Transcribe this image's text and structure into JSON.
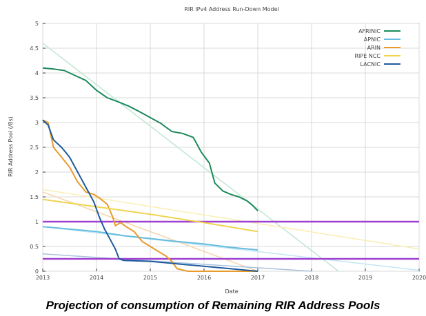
{
  "caption": "Projection of consumption of Remaining RIR Address Pools",
  "chart_data": {
    "type": "line",
    "title": "RIR IPv4 Address Run-Down Model",
    "xlabel": "Date",
    "ylabel": "RIR Address Pool (/8s)",
    "xlim": [
      2013,
      2020
    ],
    "ylim": [
      0,
      5
    ],
    "xticks": [
      "2013",
      "2014",
      "2015",
      "2016",
      "2017",
      "2018",
      "2019",
      "2020"
    ],
    "yticks": [
      "0",
      "0.5",
      "1",
      "1.5",
      "2",
      "2.5",
      "3",
      "3.5",
      "4",
      "4.5",
      "5"
    ],
    "grid": true,
    "legend_position": "top-right",
    "series": [
      {
        "name": "AFRINIC",
        "color": "#1a8a5a",
        "x": [
          2013.0,
          2013.2,
          2013.4,
          2013.6,
          2013.8,
          2014.0,
          2014.2,
          2014.4,
          2014.6,
          2014.8,
          2015.0,
          2015.2,
          2015.4,
          2015.6,
          2015.8,
          2015.95,
          2016.1,
          2016.2,
          2016.35,
          2016.5,
          2016.65,
          2016.8,
          2016.9,
          2017.0
        ],
        "y": [
          4.1,
          4.08,
          4.05,
          3.95,
          3.85,
          3.65,
          3.5,
          3.42,
          3.33,
          3.22,
          3.1,
          2.98,
          2.82,
          2.78,
          2.7,
          2.4,
          2.18,
          1.78,
          1.62,
          1.55,
          1.5,
          1.42,
          1.33,
          1.22
        ]
      },
      {
        "name": "APNIC",
        "color": "#66bde0",
        "x": [
          2013.0,
          2013.5,
          2014.0,
          2014.5,
          2015.0,
          2015.5,
          2016.0,
          2016.5,
          2017.0
        ],
        "y": [
          0.9,
          0.85,
          0.8,
          0.72,
          0.66,
          0.6,
          0.55,
          0.48,
          0.43
        ]
      },
      {
        "name": "ARIN",
        "color": "#e89a2a",
        "x": [
          2013.0,
          2013.1,
          2013.2,
          2013.35,
          2013.5,
          2013.65,
          2013.8,
          2013.95,
          2014.05,
          2014.2,
          2014.3,
          2014.35,
          2014.45,
          2014.55,
          2014.7,
          2014.85,
          2015.0,
          2015.15,
          2015.3,
          2015.4,
          2015.5,
          2015.7,
          2016.0,
          2016.5,
          2017.0
        ],
        "y": [
          3.05,
          3.0,
          2.5,
          2.3,
          2.1,
          1.8,
          1.6,
          1.55,
          1.48,
          1.35,
          1.1,
          0.92,
          0.98,
          0.9,
          0.8,
          0.6,
          0.5,
          0.4,
          0.3,
          0.2,
          0.05,
          0.0,
          0.0,
          0.0,
          0.0
        ]
      },
      {
        "name": "RIPE NCC",
        "color": "#f0d44e",
        "x": [
          2013.0,
          2014.0,
          2015.0,
          2016.0,
          2017.0
        ],
        "y": [
          1.45,
          1.3,
          1.15,
          0.98,
          0.8
        ]
      },
      {
        "name": "LACNIC",
        "color": "#1d5a9c",
        "x": [
          2013.0,
          2013.1,
          2013.2,
          2013.35,
          2013.5,
          2013.65,
          2013.8,
          2013.95,
          2014.05,
          2014.15,
          2014.25,
          2014.35,
          2014.42,
          2014.5,
          2015.0,
          2015.5,
          2016.0,
          2016.5,
          2017.0
        ],
        "y": [
          3.05,
          2.95,
          2.65,
          2.5,
          2.3,
          2.0,
          1.7,
          1.4,
          1.1,
          0.85,
          0.65,
          0.45,
          0.25,
          0.22,
          0.2,
          0.15,
          0.1,
          0.05,
          0.0
        ]
      }
    ],
    "projections": [
      {
        "series": "AFRINIC",
        "color": "#bfe6d2",
        "x": [
          2013.0,
          2018.5
        ],
        "y": [
          4.6,
          0.0
        ]
      },
      {
        "series": "APNIC",
        "color": "#c2e6f4",
        "x": [
          2013.0,
          2020.0
        ],
        "y": [
          0.9,
          0.02
        ]
      },
      {
        "series": "ARIN",
        "color": "#f6d5a8",
        "x": [
          2013.0,
          2017.0
        ],
        "y": [
          1.6,
          0.0
        ]
      },
      {
        "series": "RIPE NCC",
        "color": "#faeeb4",
        "x": [
          2013.0,
          2020.0
        ],
        "y": [
          1.65,
          0.45
        ]
      },
      {
        "series": "LACNIC",
        "color": "#a8c2dd",
        "x": [
          2013.0,
          2018.0
        ],
        "y": [
          0.35,
          0.0
        ]
      }
    ],
    "reference_lines": [
      {
        "y": 1.0,
        "color": "#a040d0"
      },
      {
        "y": 0.25,
        "color": "#a040d0"
      }
    ]
  }
}
